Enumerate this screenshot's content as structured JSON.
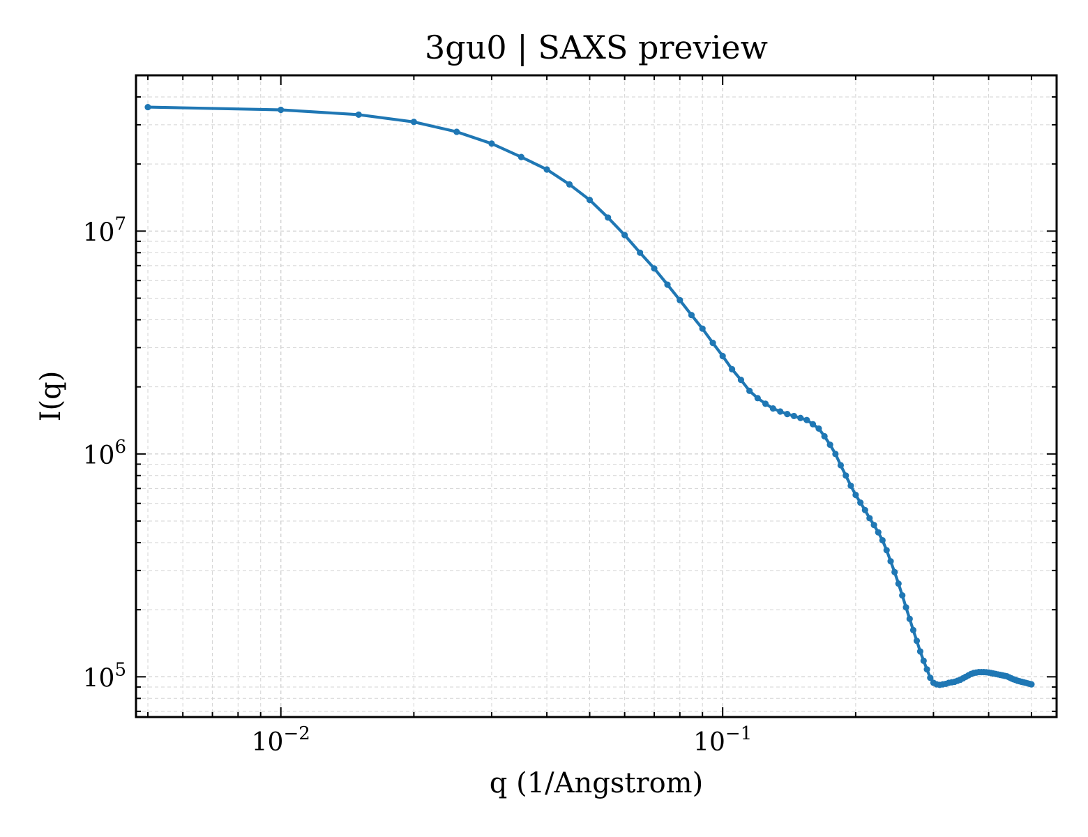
{
  "chart_data": {
    "type": "line",
    "title": "3gu0 | SAXS preview",
    "xlabel": "q (1/Angstrom)",
    "ylabel": "I(q)",
    "xscale": "log",
    "yscale": "log",
    "xlim": [
      0.0047,
      0.57
    ],
    "ylim": [
      66000,
      50000000
    ],
    "grid": true,
    "legend": "none",
    "colors": {
      "series": "#1f77b4",
      "grid": "#d3d3d3",
      "axes": "#000000"
    },
    "x_ticks": [
      {
        "value": 0.01,
        "base": "10",
        "exp": "−2"
      },
      {
        "value": 0.1,
        "base": "10",
        "exp": "−1"
      }
    ],
    "y_ticks": [
      {
        "value": 100000,
        "base": "10",
        "exp": "5"
      },
      {
        "value": 1000000,
        "base": "10",
        "exp": "6"
      },
      {
        "value": 10000000,
        "base": "10",
        "exp": "7"
      }
    ],
    "series": [
      {
        "x": [
          0.005,
          0.01,
          0.015,
          0.02,
          0.025,
          0.03,
          0.035,
          0.04,
          0.045,
          0.05,
          0.055,
          0.06,
          0.065,
          0.07,
          0.075,
          0.08,
          0.085,
          0.09,
          0.095,
          0.1,
          0.105,
          0.11,
          0.115,
          0.12,
          0.125,
          0.13,
          0.135,
          0.14,
          0.145,
          0.15,
          0.155,
          0.16,
          0.165,
          0.17,
          0.175,
          0.18,
          0.185,
          0.19,
          0.195,
          0.2,
          0.205,
          0.21,
          0.215,
          0.22,
          0.225,
          0.23,
          0.235,
          0.24,
          0.245,
          0.25,
          0.255,
          0.26,
          0.265,
          0.27,
          0.275,
          0.28,
          0.285,
          0.29,
          0.295,
          0.3,
          0.305,
          0.31,
          0.315,
          0.32,
          0.325,
          0.33,
          0.335,
          0.34,
          0.345,
          0.35,
          0.355,
          0.36,
          0.365,
          0.37,
          0.375,
          0.38,
          0.385,
          0.39,
          0.395,
          0.4,
          0.405,
          0.41,
          0.415,
          0.42,
          0.425,
          0.43,
          0.435,
          0.44,
          0.445,
          0.45,
          0.455,
          0.46,
          0.465,
          0.47,
          0.475,
          0.48,
          0.485,
          0.49,
          0.495,
          0.5
        ],
        "y": [
          36000000,
          35000000,
          33300000,
          30900000,
          27900000,
          24700000,
          21500000,
          18900000,
          16200000,
          13800000,
          11500000,
          9600000,
          8000000,
          6800000,
          5750000,
          4900000,
          4200000,
          3650000,
          3150000,
          2750000,
          2400000,
          2150000,
          1920000,
          1780000,
          1680000,
          1600000,
          1550000,
          1510000,
          1480000,
          1450000,
          1420000,
          1360000,
          1300000,
          1200000,
          1100000,
          1000000,
          890000,
          800000,
          720000,
          655000,
          605000,
          560000,
          515000,
          480000,
          445000,
          410000,
          370000,
          330000,
          295000,
          262000,
          232000,
          205000,
          182000,
          162000,
          145000,
          130000,
          118000,
          108000,
          99000,
          94000,
          92500,
          92000,
          92500,
          93000,
          94000,
          94500,
          95000,
          96000,
          97000,
          98500,
          100000,
          101500,
          103000,
          104000,
          104500,
          105000,
          105000,
          105000,
          104800,
          104500,
          104000,
          103500,
          103000,
          102500,
          102000,
          101500,
          101000,
          100500,
          99500,
          98500,
          97500,
          96800,
          96000,
          95500,
          95000,
          94500,
          94000,
          93500,
          93000,
          92500
        ]
      }
    ]
  }
}
